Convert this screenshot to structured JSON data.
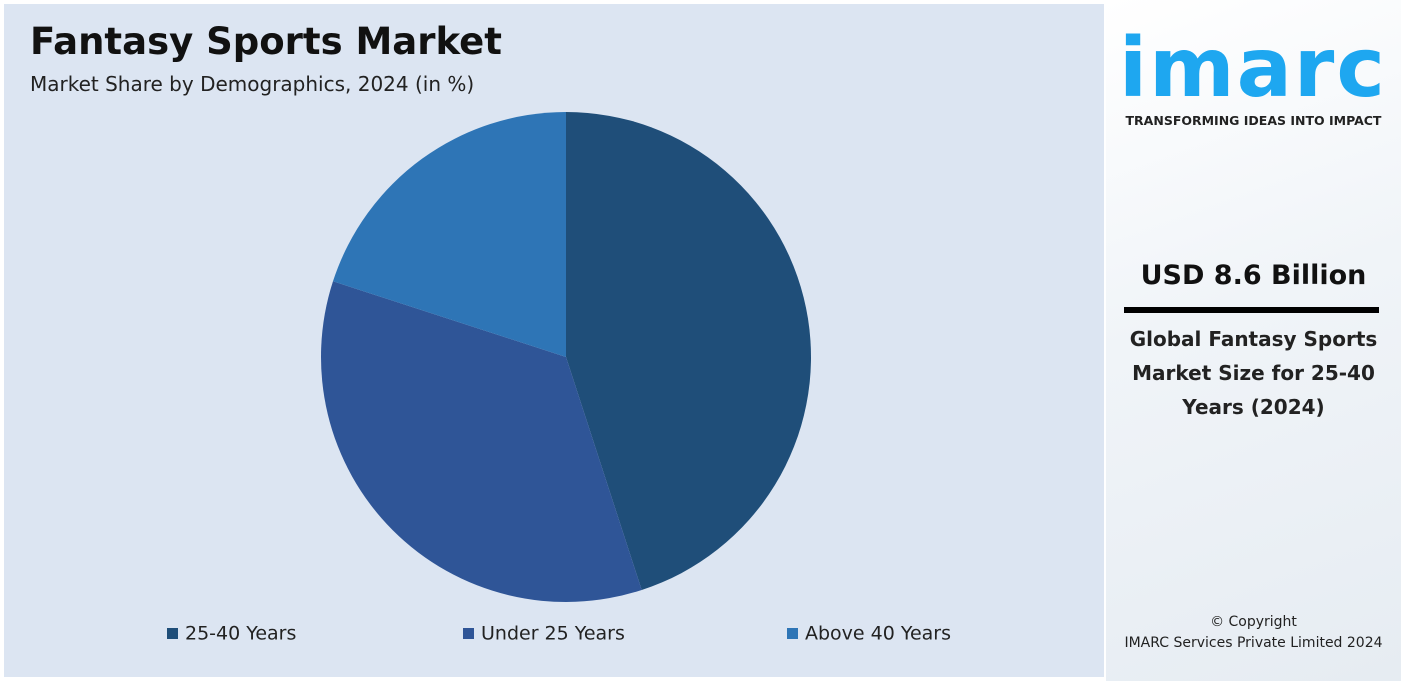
{
  "chart_data": {
    "type": "pie",
    "title": "Fantasy Sports Market",
    "subtitle": "Market Share by Demographics, 2024 (in %)",
    "categories": [
      "25-40 Years",
      "Under 25 Years",
      "Above 40 Years"
    ],
    "values": [
      45,
      35,
      20
    ],
    "colors": [
      "#1f4e79",
      "#2f5597",
      "#2e75b6"
    ],
    "legend": "bottom"
  },
  "side_panel": {
    "logo": "imarc",
    "tagline": "TRANSFORMING IDEAS INTO IMPACT",
    "headline": "USD 8.6 Billion",
    "description": "Global Fantasy Sports Market Size for 25-40 Years (2024)",
    "copyright": "© Copyright",
    "company": "IMARC Services Private Limited 2024"
  }
}
